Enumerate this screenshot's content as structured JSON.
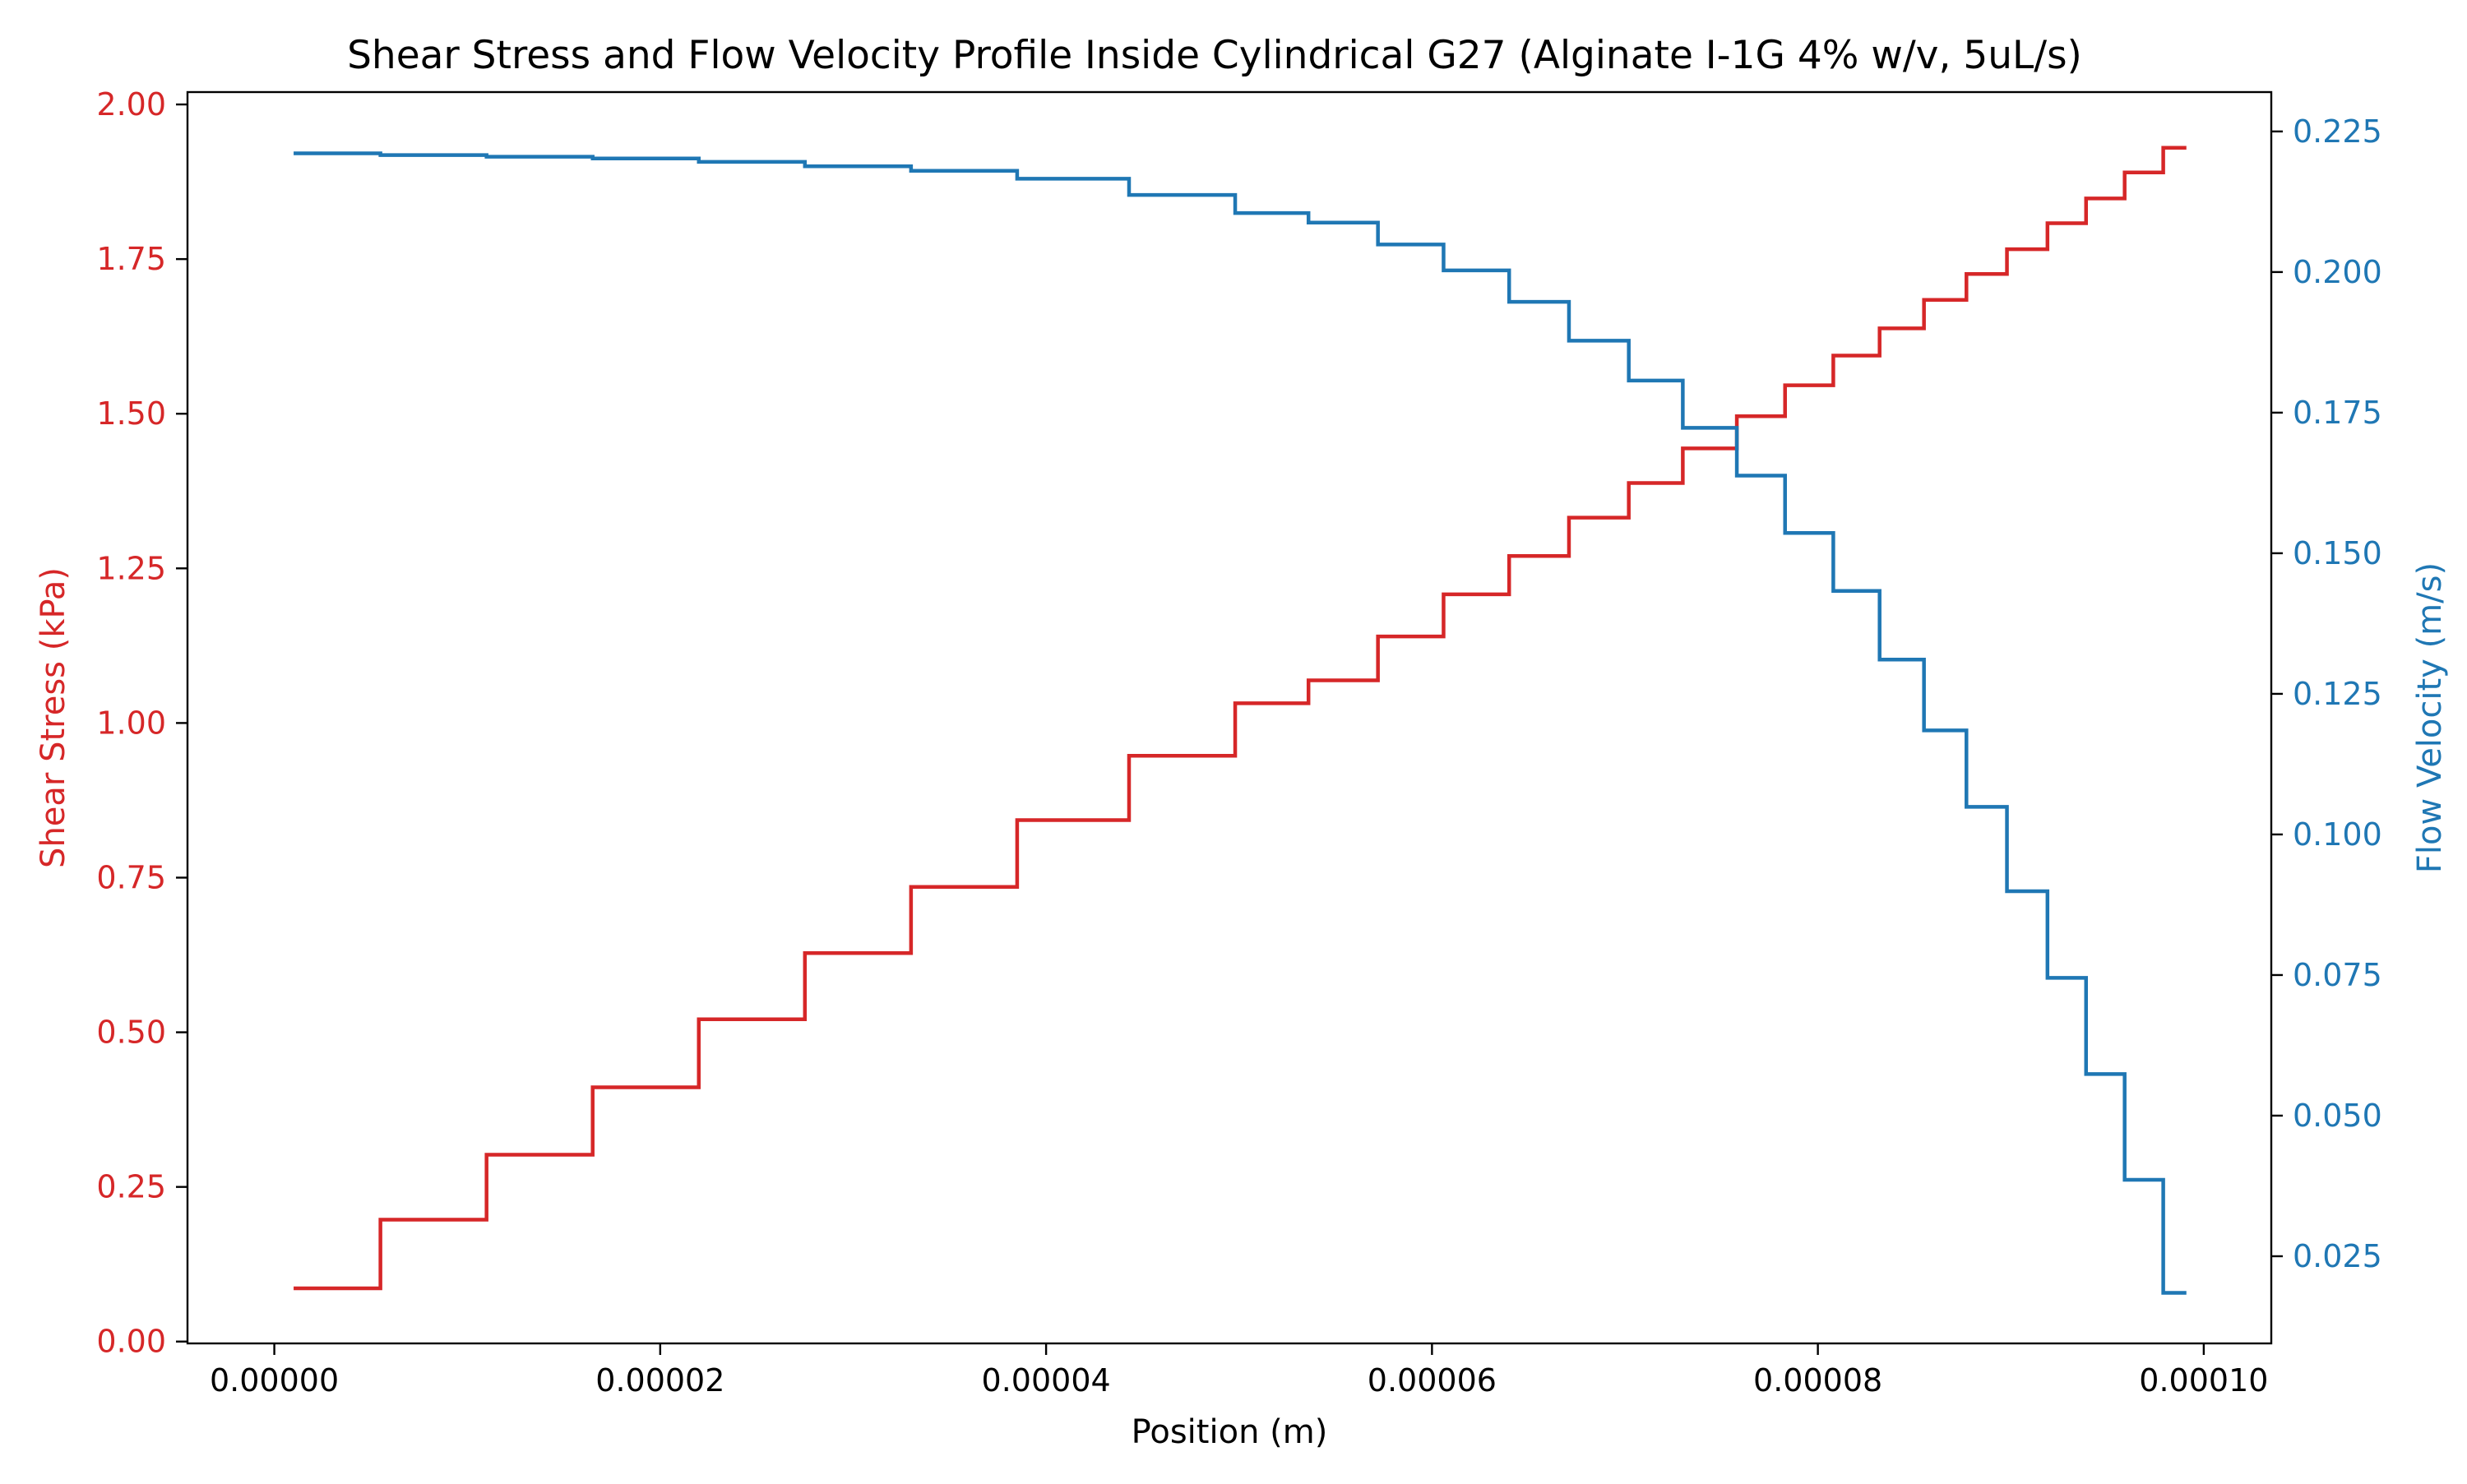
{
  "chart_data": {
    "type": "line",
    "title": "Shear Stress and Flow Velocity Profile Inside Cylindrical G27 (Alginate I-1G 4% w/v, 5uL/s)",
    "xlabel": "Position (m)",
    "ylabel_left": "Shear Stress (kPa)",
    "ylabel_right": "Flow Velocity (m/s)",
    "xlim": [
      -4.5e-06,
      0.0001035
    ],
    "ylim_left": [
      -0.003,
      2.02
    ],
    "ylim_right": [
      0.0095,
      0.232
    ],
    "x_ticks": [
      0.0,
      2e-05,
      4e-05,
      6e-05,
      8e-05,
      0.0001
    ],
    "x_tick_labels": [
      "0.00000",
      "0.00002",
      "0.00004",
      "0.00006",
      "0.00008",
      "0.00010"
    ],
    "y_left_ticks": [
      0.0,
      0.25,
      0.5,
      0.75,
      1.0,
      1.25,
      1.5,
      1.75,
      2.0
    ],
    "y_left_tick_labels": [
      "0.00",
      "0.25",
      "0.50",
      "0.75",
      "1.00",
      "1.25",
      "1.50",
      "1.75",
      "2.00"
    ],
    "y_right_ticks": [
      0.025,
      0.05,
      0.075,
      0.1,
      0.125,
      0.15,
      0.175,
      0.2,
      0.225
    ],
    "y_right_tick_labels": [
      "0.025",
      "0.050",
      "0.075",
      "0.100",
      "0.125",
      "0.150",
      "0.175",
      "0.200",
      "0.225"
    ],
    "grid": false,
    "legend": "none",
    "series": [
      {
        "axis": "left",
        "color": "#d62728",
        "x": [
          1e-06,
          5.5e-06,
          5.5e-06,
          1.1e-05,
          1.1e-05,
          1.65e-05,
          1.65e-05,
          2.2e-05,
          2.2e-05,
          2.75e-05,
          2.75e-05,
          3.3e-05,
          3.3e-05,
          3.85e-05,
          3.85e-05,
          4.43e-05,
          4.43e-05,
          4.98e-05,
          4.98e-05,
          5.36e-05,
          5.36e-05,
          5.72e-05,
          5.72e-05,
          6.06e-05,
          6.06e-05,
          6.4e-05,
          6.4e-05,
          6.71e-05,
          6.71e-05,
          7.02e-05,
          7.02e-05,
          7.3e-05,
          7.3e-05,
          7.58e-05,
          7.58e-05,
          7.83e-05,
          7.83e-05,
          8.08e-05,
          8.08e-05,
          8.32e-05,
          8.32e-05,
          8.55e-05,
          8.55e-05,
          8.77e-05,
          8.77e-05,
          8.98e-05,
          8.98e-05,
          9.19e-05,
          9.19e-05,
          9.39e-05,
          9.39e-05,
          9.59e-05,
          9.59e-05,
          9.79e-05,
          9.79e-05,
          9.91e-05
        ],
        "y": [
          0.086,
          0.086,
          0.197,
          0.197,
          0.302,
          0.302,
          0.411,
          0.411,
          0.521,
          0.521,
          0.628,
          0.628,
          0.735,
          0.735,
          0.843,
          0.843,
          0.947,
          0.947,
          1.032,
          1.032,
          1.069,
          1.069,
          1.14,
          1.14,
          1.208,
          1.208,
          1.27,
          1.27,
          1.332,
          1.332,
          1.388,
          1.388,
          1.444,
          1.444,
          1.496,
          1.496,
          1.546,
          1.546,
          1.594,
          1.594,
          1.638,
          1.638,
          1.684,
          1.684,
          1.726,
          1.726,
          1.766,
          1.766,
          1.808,
          1.808,
          1.848,
          1.848,
          1.89,
          1.89,
          1.93,
          1.93
        ]
      },
      {
        "axis": "right",
        "color": "#1f77b4",
        "x": [
          1e-06,
          5.5e-06,
          5.5e-06,
          1.1e-05,
          1.1e-05,
          1.65e-05,
          1.65e-05,
          2.2e-05,
          2.2e-05,
          2.75e-05,
          2.75e-05,
          3.3e-05,
          3.3e-05,
          3.85e-05,
          3.85e-05,
          4.43e-05,
          4.43e-05,
          4.98e-05,
          4.98e-05,
          5.36e-05,
          5.36e-05,
          5.72e-05,
          5.72e-05,
          6.06e-05,
          6.06e-05,
          6.4e-05,
          6.4e-05,
          6.71e-05,
          6.71e-05,
          7.02e-05,
          7.02e-05,
          7.3e-05,
          7.3e-05,
          7.58e-05,
          7.58e-05,
          7.83e-05,
          7.83e-05,
          8.08e-05,
          8.08e-05,
          8.32e-05,
          8.32e-05,
          8.55e-05,
          8.55e-05,
          8.77e-05,
          8.77e-05,
          8.98e-05,
          8.98e-05,
          9.19e-05,
          9.19e-05,
          9.39e-05,
          9.39e-05,
          9.59e-05,
          9.59e-05,
          9.79e-05,
          9.79e-05,
          9.91e-05
        ],
        "y": [
          0.2211,
          0.2211,
          0.2208,
          0.2208,
          0.2205,
          0.2205,
          0.2202,
          0.2202,
          0.2196,
          0.2196,
          0.2188,
          0.2188,
          0.218,
          0.218,
          0.2166,
          0.2166,
          0.2137,
          0.2137,
          0.2105,
          0.2105,
          0.2088,
          0.2088,
          0.2049,
          0.2049,
          0.2003,
          0.2003,
          0.1947,
          0.1947,
          0.1878,
          0.1878,
          0.1807,
          0.1807,
          0.1723,
          0.1723,
          0.1638,
          0.1638,
          0.1536,
          0.1536,
          0.1433,
          0.1433,
          0.1311,
          0.1311,
          0.1185,
          0.1185,
          0.1049,
          0.1049,
          0.0899,
          0.0899,
          0.0745,
          0.0745,
          0.0574,
          0.0574,
          0.0386,
          0.0386,
          0.0185,
          0.0185
        ]
      }
    ],
    "colors": {
      "left_axis": "#d62728",
      "right_axis": "#1f77b4",
      "frame": "#000000"
    }
  }
}
